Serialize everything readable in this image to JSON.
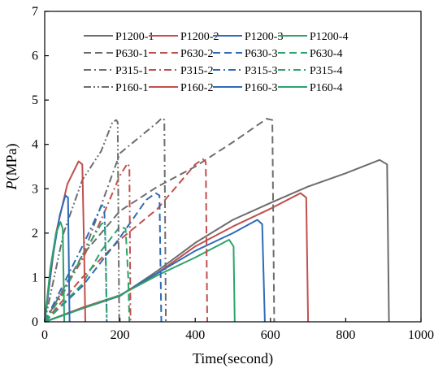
{
  "chart_data": {
    "type": "line",
    "xlabel": "Time(second)",
    "ylabel_italic": "P",
    "ylabel_rest": "(MPa)",
    "xlim": [
      0,
      1000
    ],
    "ylim": [
      0,
      7
    ],
    "xticks": [
      0,
      200,
      400,
      600,
      800,
      1000
    ],
    "yticks": [
      0,
      1,
      2,
      3,
      4,
      5,
      6,
      7
    ],
    "grid": false,
    "legend_position": "top",
    "legend_columns": 4,
    "series": [
      {
        "name": "P1200-1",
        "color": "#6d6d6d",
        "dash": "solid",
        "x": [
          0,
          100,
          200,
          300,
          400,
          500,
          600,
          700,
          800,
          890,
          910,
          915
        ],
        "y": [
          0,
          0.3,
          0.58,
          1.15,
          1.78,
          2.3,
          2.68,
          3.05,
          3.35,
          3.65,
          3.55,
          0
        ]
      },
      {
        "name": "P1200-2",
        "color": "#c0504d",
        "dash": "solid",
        "x": [
          0,
          100,
          200,
          300,
          400,
          500,
          600,
          680,
          695,
          700
        ],
        "y": [
          0,
          0.32,
          0.6,
          1.1,
          1.7,
          2.15,
          2.55,
          2.9,
          2.8,
          0
        ]
      },
      {
        "name": "P1200-3",
        "color": "#2e6bb5",
        "dash": "solid",
        "x": [
          0,
          100,
          200,
          300,
          400,
          500,
          565,
          578,
          585
        ],
        "y": [
          0,
          0.3,
          0.6,
          1.1,
          1.6,
          2.0,
          2.3,
          2.2,
          0
        ]
      },
      {
        "name": "P1200-4",
        "color": "#2ea36b",
        "dash": "solid",
        "x": [
          0,
          100,
          200,
          300,
          400,
          490,
          502,
          505
        ],
        "y": [
          0,
          0.3,
          0.6,
          1.05,
          1.45,
          1.85,
          1.7,
          0
        ]
      },
      {
        "name": "P630-1",
        "color": "#6d6d6d",
        "dash": "dash",
        "x": [
          0,
          100,
          200,
          300,
          400,
          500,
          590,
          605,
          610
        ],
        "y": [
          0,
          1.5,
          2.5,
          3.05,
          3.5,
          4.05,
          4.58,
          4.55,
          0
        ]
      },
      {
        "name": "P630-2",
        "color": "#c0504d",
        "dash": "dash",
        "x": [
          0,
          100,
          200,
          300,
          400,
          420,
          428,
          432
        ],
        "y": [
          0,
          1.0,
          1.85,
          2.55,
          3.55,
          3.67,
          3.6,
          0
        ]
      },
      {
        "name": "P630-3",
        "color": "#2e6bb5",
        "dash": "dash",
        "x": [
          0,
          100,
          200,
          270,
          295,
          305,
          310
        ],
        "y": [
          0,
          0.8,
          1.9,
          2.75,
          2.9,
          2.85,
          0
        ]
      },
      {
        "name": "P630-4",
        "color": "#2ea36b",
        "dash": "dash",
        "x": [
          0,
          100,
          150,
          200,
          215,
          222,
          225
        ],
        "y": [
          0,
          0.85,
          1.6,
          2.15,
          2.1,
          1.0,
          0
        ]
      },
      {
        "name": "P315-1",
        "color": "#6d6d6d",
        "dash": "dashdot",
        "x": [
          0,
          100,
          200,
          300,
          312,
          318,
          322
        ],
        "y": [
          0,
          1.45,
          3.8,
          4.5,
          4.6,
          4.55,
          0
        ]
      },
      {
        "name": "P315-2",
        "color": "#c0504d",
        "dash": "dashdot",
        "x": [
          0,
          100,
          150,
          200,
          220,
          225,
          228
        ],
        "y": [
          0,
          1.4,
          2.3,
          3.3,
          3.57,
          3.5,
          0
        ]
      },
      {
        "name": "P315-3",
        "color": "#2e6bb5",
        "dash": "dashdot",
        "x": [
          0,
          100,
          150,
          158,
          162,
          165
        ],
        "y": [
          0,
          1.7,
          2.6,
          2.65,
          1.5,
          0
        ]
      },
      {
        "name": "P315-4",
        "color": "#2ea36b",
        "dash": "dashdot",
        "x": [
          0,
          50,
          100,
          150,
          160,
          163,
          165
        ],
        "y": [
          0,
          0.65,
          1.5,
          2.2,
          2.25,
          1.2,
          0
        ]
      },
      {
        "name": "P160-1",
        "color": "#6d6d6d",
        "dash": "dashdotdot",
        "x": [
          0,
          50,
          100,
          150,
          180,
          190,
          194,
          198
        ],
        "y": [
          0,
          2.0,
          3.2,
          3.85,
          4.5,
          4.55,
          4.5,
          0
        ]
      },
      {
        "name": "P160-2",
        "color": "#c0504d",
        "dash": "solid",
        "x": [
          0,
          30,
          60,
          90,
          100,
          105,
          108
        ],
        "y": [
          0,
          2.0,
          3.1,
          3.62,
          3.55,
          1.5,
          0
        ]
      },
      {
        "name": "P160-3",
        "color": "#2e6bb5",
        "dash": "solid",
        "x": [
          0,
          20,
          40,
          55,
          62,
          64,
          66
        ],
        "y": [
          0,
          1.4,
          2.4,
          2.85,
          2.8,
          1.5,
          0
        ]
      },
      {
        "name": "P160-4",
        "color": "#2ea36b",
        "dash": "solid",
        "x": [
          0,
          15,
          30,
          42,
          48,
          50,
          52
        ],
        "y": [
          0,
          1.2,
          2.0,
          2.25,
          2.1,
          1.0,
          0
        ]
      }
    ]
  }
}
